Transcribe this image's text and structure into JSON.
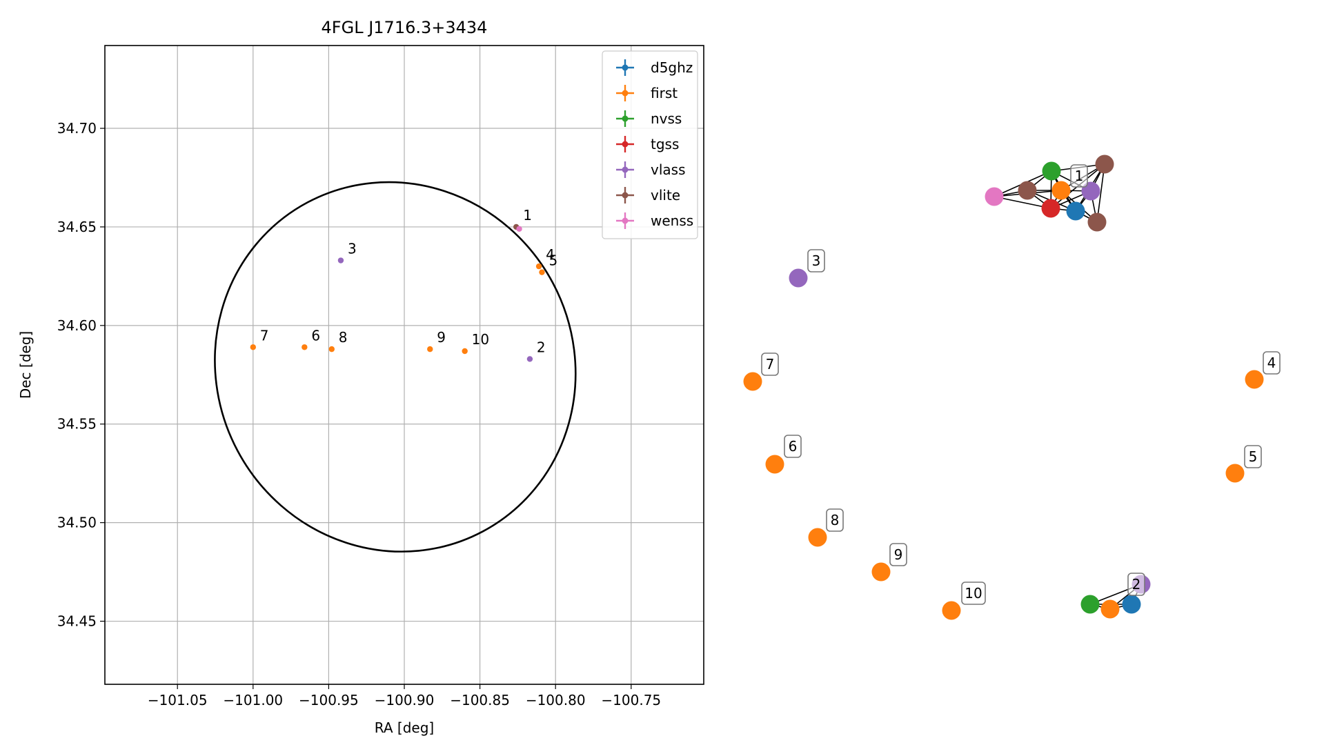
{
  "chart_data": [
    {
      "type": "scatter",
      "title": "4FGL J1716.3+3434",
      "xlabel": "RA [deg]",
      "ylabel": "Dec [deg]",
      "xlim": [
        -101.098,
        -100.702
      ],
      "ylim": [
        34.418,
        34.742
      ],
      "xticks": [
        -101.05,
        -101.0,
        -100.95,
        -100.9,
        -100.85,
        -100.8,
        -100.75
      ],
      "xtick_labels": [
        "−101.05",
        "−101.00",
        "−100.95",
        "−100.90",
        "−100.85",
        "−100.80",
        "−100.75"
      ],
      "yticks": [
        34.45,
        34.5,
        34.55,
        34.6,
        34.65,
        34.7
      ],
      "ytick_labels": [
        "34.45",
        "34.50",
        "34.55",
        "34.60",
        "34.65",
        "34.70"
      ],
      "grid": true,
      "legend_position": "top-right",
      "ellipse": {
        "center": [
          -100.906,
          34.579
        ],
        "ra_extent": [
          -101.022,
          -100.781
        ],
        "dec_extent": [
          34.484,
          34.675
        ],
        "color": "#000000"
      },
      "series": [
        {
          "name": "d5ghz",
          "color": "#1f77b4",
          "points": []
        },
        {
          "name": "first",
          "color": "#ff7f0e",
          "points": [
            {
              "ra": -100.811,
              "dec": 34.63,
              "label": "4"
            },
            {
              "ra": -100.809,
              "dec": 34.627,
              "label": "5"
            },
            {
              "ra": -100.966,
              "dec": 34.589,
              "label": "6"
            },
            {
              "ra": -101.0,
              "dec": 34.589,
              "label": "7"
            },
            {
              "ra": -100.948,
              "dec": 34.588,
              "label": "8"
            },
            {
              "ra": -100.883,
              "dec": 34.588,
              "label": "9"
            },
            {
              "ra": -100.86,
              "dec": 34.587,
              "label": "10"
            }
          ]
        },
        {
          "name": "nvss",
          "color": "#2ca02c",
          "points": []
        },
        {
          "name": "tgss",
          "color": "#d62728",
          "points": []
        },
        {
          "name": "vlass",
          "color": "#9467bd",
          "points": [
            {
              "ra": -100.942,
              "dec": 34.633,
              "label": "3"
            },
            {
              "ra": -100.817,
              "dec": 34.583,
              "label": "2"
            }
          ]
        },
        {
          "name": "vlite",
          "color": "#8c564b",
          "points": [
            {
              "ra": -100.826,
              "dec": 34.65,
              "label": "1"
            }
          ]
        },
        {
          "name": "wenss",
          "color": "#e377c2",
          "points": [
            {
              "ra": -100.824,
              "dec": 34.649,
              "label": ""
            }
          ]
        }
      ]
    },
    {
      "type": "network",
      "nodes": [
        {
          "id": "g1_d5ghz",
          "series": "d5ghz",
          "color": "#1f77b4"
        },
        {
          "id": "g1_first",
          "series": "first",
          "color": "#ff7f0e"
        },
        {
          "id": "g1_nvss",
          "series": "nvss",
          "color": "#2ca02c"
        },
        {
          "id": "g1_tgss",
          "series": "tgss",
          "color": "#d62728"
        },
        {
          "id": "g1_vlass",
          "series": "vlass",
          "color": "#9467bd"
        },
        {
          "id": "g1_vlite_a",
          "series": "vlite",
          "color": "#8c564b"
        },
        {
          "id": "g1_vlite_b",
          "series": "vlite",
          "color": "#8c564b"
        },
        {
          "id": "g1_vlite_c",
          "series": "vlite",
          "color": "#8c564b"
        },
        {
          "id": "g1_wenss",
          "series": "wenss",
          "color": "#e377c2"
        },
        {
          "id": "n3",
          "series": "vlass",
          "color": "#9467bd"
        },
        {
          "id": "n7",
          "series": "first",
          "color": "#ff7f0e"
        },
        {
          "id": "n6",
          "series": "first",
          "color": "#ff7f0e"
        },
        {
          "id": "n8",
          "series": "first",
          "color": "#ff7f0e"
        },
        {
          "id": "n9",
          "series": "first",
          "color": "#ff7f0e"
        },
        {
          "id": "n10",
          "series": "first",
          "color": "#ff7f0e"
        },
        {
          "id": "n4",
          "series": "first",
          "color": "#ff7f0e"
        },
        {
          "id": "n5",
          "series": "first",
          "color": "#ff7f0e"
        },
        {
          "id": "g2_vlass",
          "series": "vlass",
          "color": "#9467bd"
        },
        {
          "id": "g2_nvss",
          "series": "nvss",
          "color": "#2ca02c"
        },
        {
          "id": "g2_first",
          "series": "first",
          "color": "#ff7f0e"
        },
        {
          "id": "g2_d5ghz",
          "series": "d5ghz",
          "color": "#1f77b4"
        }
      ],
      "edges": [
        [
          "g1_wenss",
          "g1_vlite_a"
        ],
        [
          "g1_wenss",
          "g1_nvss"
        ],
        [
          "g1_wenss",
          "g1_tgss"
        ],
        [
          "g1_wenss",
          "g1_first"
        ],
        [
          "g1_vlite_a",
          "g1_nvss"
        ],
        [
          "g1_vlite_a",
          "g1_tgss"
        ],
        [
          "g1_vlite_a",
          "g1_first"
        ],
        [
          "g1_vlite_a",
          "g1_d5ghz"
        ],
        [
          "g1_nvss",
          "g1_first"
        ],
        [
          "g1_nvss",
          "g1_tgss"
        ],
        [
          "g1_nvss",
          "g1_vlite_b"
        ],
        [
          "g1_nvss",
          "g1_d5ghz"
        ],
        [
          "g1_nvss",
          "g1_vlass"
        ],
        [
          "g1_tgss",
          "g1_first"
        ],
        [
          "g1_tgss",
          "g1_d5ghz"
        ],
        [
          "g1_tgss",
          "g1_vlass"
        ],
        [
          "g1_tgss",
          "g1_vlite_b"
        ],
        [
          "g1_first",
          "g1_d5ghz"
        ],
        [
          "g1_first",
          "g1_vlass"
        ],
        [
          "g1_first",
          "g1_vlite_b"
        ],
        [
          "g1_first",
          "g1_vlite_c"
        ],
        [
          "g1_d5ghz",
          "g1_vlass"
        ],
        [
          "g1_d5ghz",
          "g1_vlite_c"
        ],
        [
          "g1_d5ghz",
          "g1_vlite_b"
        ],
        [
          "g1_vlass",
          "g1_vlite_b"
        ],
        [
          "g1_vlass",
          "g1_vlite_c"
        ],
        [
          "g1_vlite_b",
          "g1_vlite_c"
        ],
        [
          "g2_vlass",
          "g2_nvss"
        ],
        [
          "g2_vlass",
          "g2_first"
        ],
        [
          "g2_vlass",
          "g2_d5ghz"
        ],
        [
          "g2_nvss",
          "g2_first"
        ],
        [
          "g2_nvss",
          "g2_d5ghz"
        ],
        [
          "g2_first",
          "g2_d5ghz"
        ]
      ],
      "labels": [
        "1",
        "3",
        "7",
        "6",
        "8",
        "9",
        "10",
        "4",
        "5",
        "2"
      ]
    }
  ]
}
